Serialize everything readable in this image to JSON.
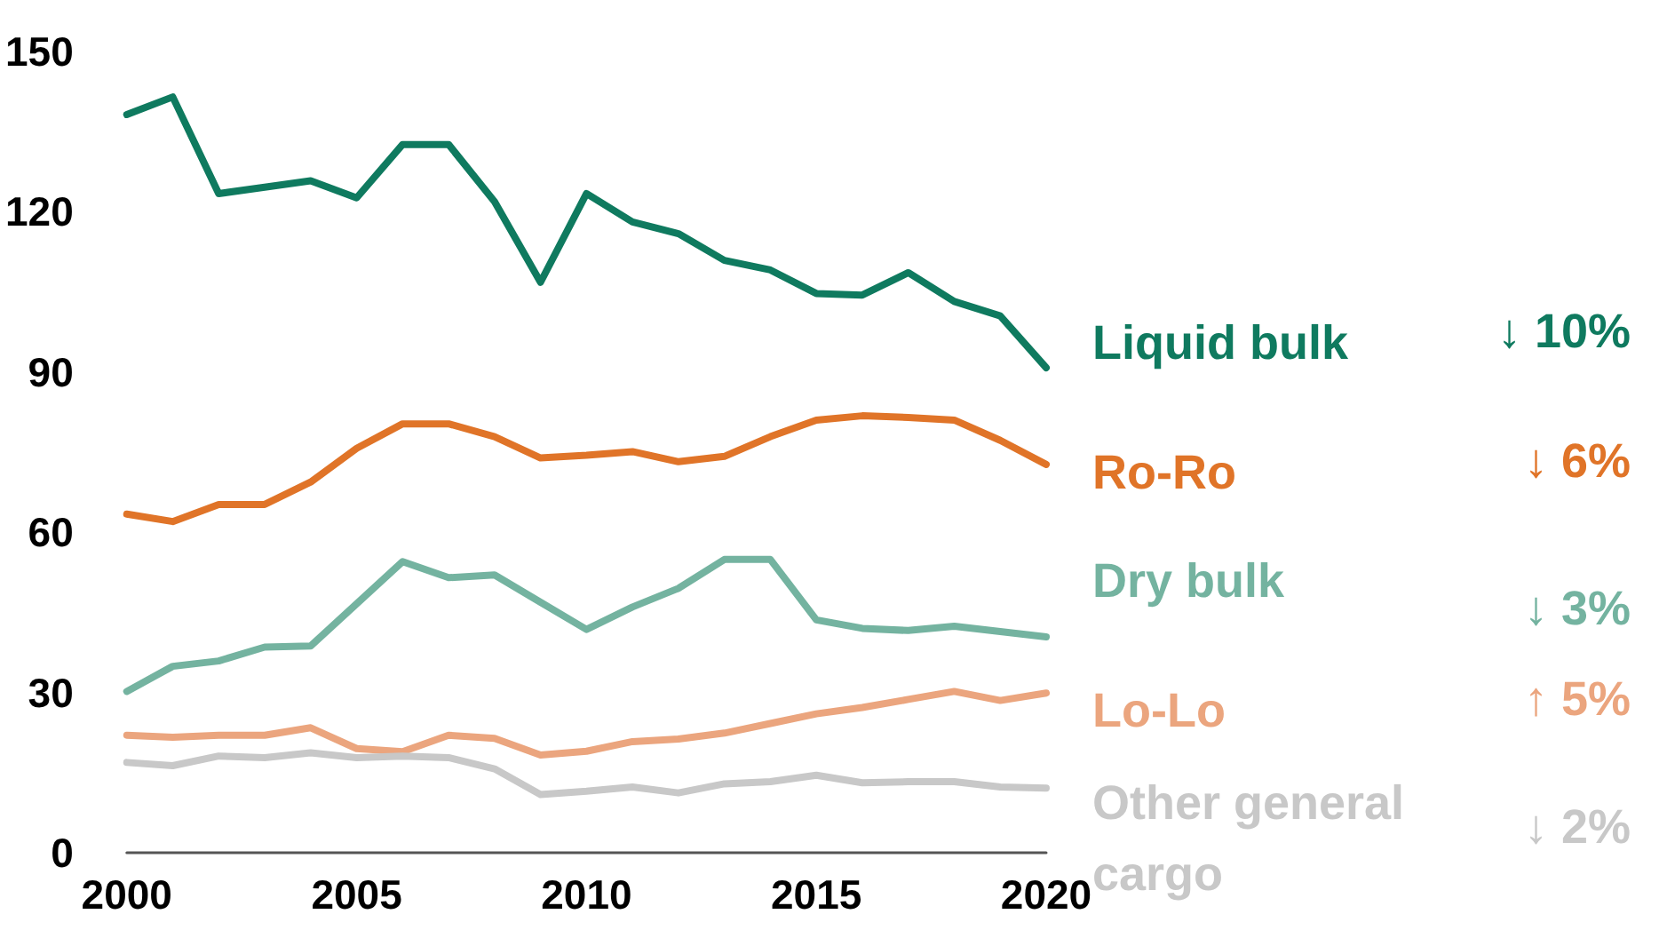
{
  "chart_data": {
    "type": "line",
    "x": [
      2000,
      2001,
      2002,
      2003,
      2004,
      2005,
      2006,
      2007,
      2008,
      2009,
      2010,
      2011,
      2012,
      2013,
      2014,
      2015,
      2016,
      2017,
      2018,
      2019,
      2020
    ],
    "xlim": [
      2000,
      2020
    ],
    "xticks": [
      2000,
      2005,
      2010,
      2015,
      2020
    ],
    "ylim": [
      0,
      150
    ],
    "yticks": [
      0,
      30,
      60,
      90,
      120,
      150
    ],
    "grid": false,
    "legend": false,
    "marker": "none",
    "line_style": "solid",
    "series": [
      {
        "name": "Liquid bulk",
        "color": "#0f7a5f",
        "values": [
          138.2,
          141.5,
          123.4,
          124.6,
          125.8,
          122.6,
          132.6,
          132.6,
          121.9,
          106.8,
          123.4,
          118.1,
          115.9,
          110.9,
          109.1,
          104.7,
          104.4,
          108.6,
          103.2,
          100.5,
          90.8
        ]
      },
      {
        "name": "Ro-Ro",
        "color": "#e07428",
        "values": [
          63.4,
          62.0,
          65.2,
          65.2,
          69.4,
          75.7,
          80.3,
          80.3,
          77.9,
          73.9,
          74.4,
          75.1,
          73.2,
          74.2,
          77.9,
          81.0,
          81.8,
          81.5,
          81.0,
          77.2,
          72.7
        ]
      },
      {
        "name": "Dry bulk",
        "color": "#74b3a0",
        "values": [
          30.2,
          34.9,
          35.9,
          38.5,
          38.7,
          46.6,
          54.5,
          51.5,
          52.0,
          46.9,
          41.8,
          46.0,
          49.5,
          54.9,
          54.9,
          43.6,
          42.0,
          41.6,
          42.4,
          41.4,
          40.4
        ]
      },
      {
        "name": "Lo-Lo",
        "color": "#eba57e",
        "values": [
          22.0,
          21.6,
          22.0,
          22.0,
          23.4,
          19.5,
          18.9,
          22.0,
          21.4,
          18.3,
          19.0,
          20.8,
          21.3,
          22.4,
          24.2,
          26.0,
          27.2,
          28.7,
          30.2,
          28.5,
          29.9
        ]
      },
      {
        "name": "Other general cargo",
        "color": "#c8c8c8",
        "values": [
          16.9,
          16.3,
          18.1,
          17.8,
          18.7,
          17.8,
          18.1,
          17.8,
          15.7,
          10.9,
          11.5,
          12.3,
          11.2,
          12.9,
          13.3,
          14.5,
          13.1,
          13.3,
          13.3,
          12.3,
          12.1
        ]
      }
    ],
    "annotations": [
      "↓ 10%",
      "↓ 6%",
      "↓ 3%",
      "↑ 5%",
      "↓ 2%"
    ]
  }
}
